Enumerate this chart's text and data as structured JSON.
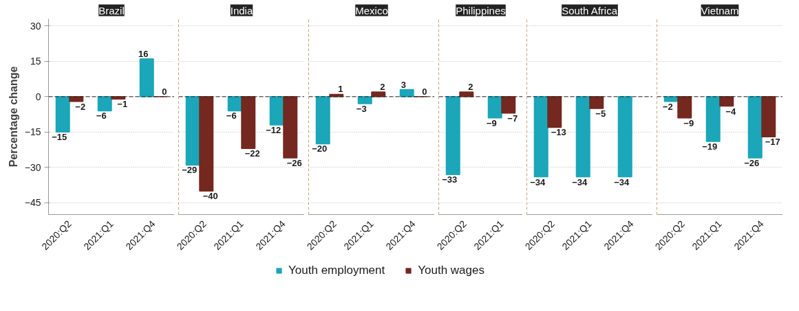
{
  "chart_data": [
    {
      "type": "bar",
      "title": "Brazil",
      "ylabel": "Percentage change",
      "categories": [
        "2020:Q2",
        "2021:Q1",
        "2021:Q4"
      ],
      "ylim": [
        -50,
        33
      ],
      "yticks": [
        -45,
        -30,
        -15,
        0,
        15,
        30
      ],
      "grid": "y",
      "data_labels": true,
      "legend": "bottom",
      "ref_lines": [
        {
          "axis": "y",
          "value": 0,
          "color": "#222222",
          "line_style": "dashed"
        }
      ],
      "series": [
        {
          "name": "Youth employment",
          "color": "#1ba6b9",
          "values": [
            -15,
            -6,
            16
          ]
        },
        {
          "name": "Youth wages",
          "color": "#74281f",
          "values": [
            -2,
            -1,
            0
          ]
        }
      ]
    },
    {
      "type": "bar",
      "title": "India",
      "categories": [
        "2020:Q2",
        "2021:Q1",
        "2021:Q4"
      ],
      "ylim": [
        -50,
        33
      ],
      "yticks": [
        -45,
        -30,
        -15,
        0,
        15,
        30
      ],
      "tick_labels": "x",
      "grid": "y",
      "data_labels": true,
      "ref_lines": [
        {
          "axis": "y",
          "value": 0,
          "color": "#222222",
          "line_style": "dashed"
        }
      ],
      "series": [
        {
          "color": "#1ba6b9",
          "values": [
            -29,
            -6,
            -12
          ]
        },
        {
          "color": "#74281f",
          "values": [
            -40,
            -22,
            -26
          ]
        }
      ]
    },
    {
      "type": "bar",
      "title": "Mexico",
      "categories": [
        "2020:Q2",
        "2021:Q1",
        "2021:Q4"
      ],
      "ylim": [
        -50,
        33
      ],
      "yticks": [
        -45,
        -30,
        -15,
        0,
        15,
        30
      ],
      "tick_labels": "x",
      "grid": "y",
      "data_labels": true,
      "ref_lines": [
        {
          "axis": "y",
          "value": 0,
          "color": "#222222",
          "line_style": "dashed"
        }
      ],
      "series": [
        {
          "color": "#1ba6b9",
          "values": [
            -20,
            -3,
            3
          ]
        },
        {
          "color": "#74281f",
          "values": [
            1,
            2,
            0
          ]
        }
      ]
    },
    {
      "type": "bar",
      "title": "Philippines",
      "categories": [
        "2020:Q2",
        "2021:Q1"
      ],
      "ylim": [
        -50,
        33
      ],
      "yticks": [
        -45,
        -30,
        -15,
        0,
        15,
        30
      ],
      "tick_labels": "x",
      "grid": "y",
      "data_labels": true,
      "ref_lines": [
        {
          "axis": "y",
          "value": 0,
          "color": "#222222",
          "line_style": "dashed"
        }
      ],
      "series": [
        {
          "color": "#1ba6b9",
          "values": [
            -33,
            -9
          ]
        },
        {
          "color": "#74281f",
          "values": [
            2,
            -7
          ]
        }
      ]
    },
    {
      "type": "bar",
      "title": "South Africa",
      "categories": [
        "2020:Q2",
        "2021:Q1",
        "2021:Q4"
      ],
      "ylim": [
        -50,
        33
      ],
      "yticks": [
        -45,
        -30,
        -15,
        0,
        15,
        30
      ],
      "tick_labels": "x",
      "grid": "y",
      "data_labels": true,
      "ref_lines": [
        {
          "axis": "y",
          "value": 0,
          "color": "#222222",
          "line_style": "dashed"
        }
      ],
      "series": [
        {
          "color": "#1ba6b9",
          "values": [
            -34,
            -34,
            -34
          ]
        },
        {
          "color": "#74281f",
          "values": [
            -13,
            -5,
            null
          ]
        }
      ]
    },
    {
      "type": "bar",
      "title": "Vietnam",
      "categories": [
        "2020:Q2",
        "2021:Q1",
        "2021:Q4"
      ],
      "ylim": [
        -50,
        33
      ],
      "yticks": [
        -45,
        -30,
        -15,
        0,
        15,
        30
      ],
      "tick_labels": "x",
      "grid": "y",
      "data_labels": true,
      "ref_lines": [
        {
          "axis": "y",
          "value": 0,
          "color": "#222222",
          "line_style": "dashed"
        }
      ],
      "series": [
        {
          "color": "#1ba6b9",
          "values": [
            -2,
            -19,
            -26
          ]
        },
        {
          "color": "#74281f",
          "values": [
            -9,
            -4,
            -17
          ]
        }
      ]
    }
  ]
}
